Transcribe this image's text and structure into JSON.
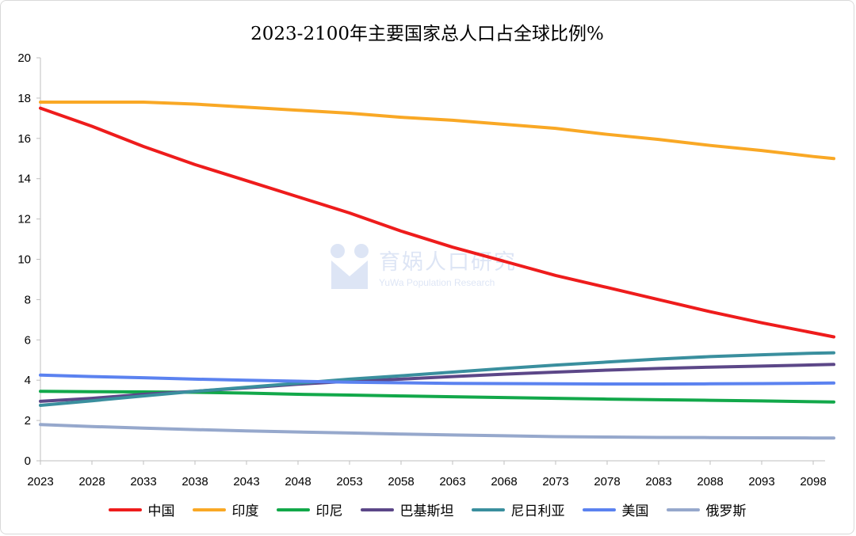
{
  "chart_data": {
    "type": "line",
    "title": "2023-2100年主要国家总人口占全球比例%",
    "x_ticks": [
      2023,
      2028,
      2033,
      2038,
      2043,
      2048,
      2053,
      2058,
      2063,
      2068,
      2073,
      2078,
      2083,
      2088,
      2093,
      2098
    ],
    "xlim": [
      2023,
      2100
    ],
    "ylim": [
      0,
      20
    ],
    "y_ticks": [
      0,
      2,
      4,
      6,
      8,
      10,
      12,
      14,
      16,
      18,
      20
    ],
    "grid": false,
    "legend": "bottom",
    "x": [
      2023,
      2028,
      2033,
      2038,
      2043,
      2048,
      2053,
      2058,
      2063,
      2068,
      2073,
      2078,
      2083,
      2088,
      2093,
      2098,
      2100
    ],
    "series": [
      {
        "name": "中国",
        "color": "#ee1c1c",
        "values": [
          17.5,
          16.6,
          15.6,
          14.7,
          13.9,
          13.1,
          12.3,
          11.4,
          10.6,
          9.9,
          9.2,
          8.6,
          8.0,
          7.4,
          6.85,
          6.35,
          6.15
        ]
      },
      {
        "name": "印度",
        "color": "#f9a825",
        "values": [
          17.8,
          17.8,
          17.8,
          17.7,
          17.55,
          17.4,
          17.25,
          17.05,
          16.9,
          16.7,
          16.5,
          16.2,
          15.95,
          15.65,
          15.4,
          15.1,
          15.0
        ]
      },
      {
        "name": "印尼",
        "color": "#12a84a",
        "values": [
          3.45,
          3.43,
          3.42,
          3.4,
          3.36,
          3.3,
          3.26,
          3.22,
          3.18,
          3.14,
          3.1,
          3.06,
          3.03,
          3.0,
          2.97,
          2.93,
          2.92
        ]
      },
      {
        "name": "巴基斯坦",
        "color": "#5c4788",
        "values": [
          2.95,
          3.1,
          3.3,
          3.45,
          3.62,
          3.8,
          3.95,
          4.05,
          4.18,
          4.3,
          4.4,
          4.5,
          4.58,
          4.65,
          4.7,
          4.76,
          4.78
        ]
      },
      {
        "name": "尼日利亚",
        "color": "#3a8f9e",
        "values": [
          2.75,
          2.98,
          3.22,
          3.45,
          3.65,
          3.85,
          4.05,
          4.22,
          4.4,
          4.58,
          4.75,
          4.9,
          5.05,
          5.17,
          5.26,
          5.34,
          5.36
        ]
      },
      {
        "name": "美国",
        "color": "#5b82f0",
        "values": [
          4.25,
          4.18,
          4.12,
          4.05,
          4.0,
          3.95,
          3.9,
          3.87,
          3.84,
          3.83,
          3.82,
          3.81,
          3.81,
          3.82,
          3.83,
          3.85,
          3.86
        ]
      },
      {
        "name": "俄罗斯",
        "color": "#96a8cc",
        "values": [
          1.8,
          1.7,
          1.62,
          1.55,
          1.48,
          1.43,
          1.38,
          1.33,
          1.28,
          1.24,
          1.2,
          1.18,
          1.16,
          1.15,
          1.14,
          1.13,
          1.13
        ]
      }
    ]
  },
  "watermark": {
    "main": "育娲人口研究",
    "sub": "YuWa Population Research",
    "color": "#4a74c9"
  }
}
